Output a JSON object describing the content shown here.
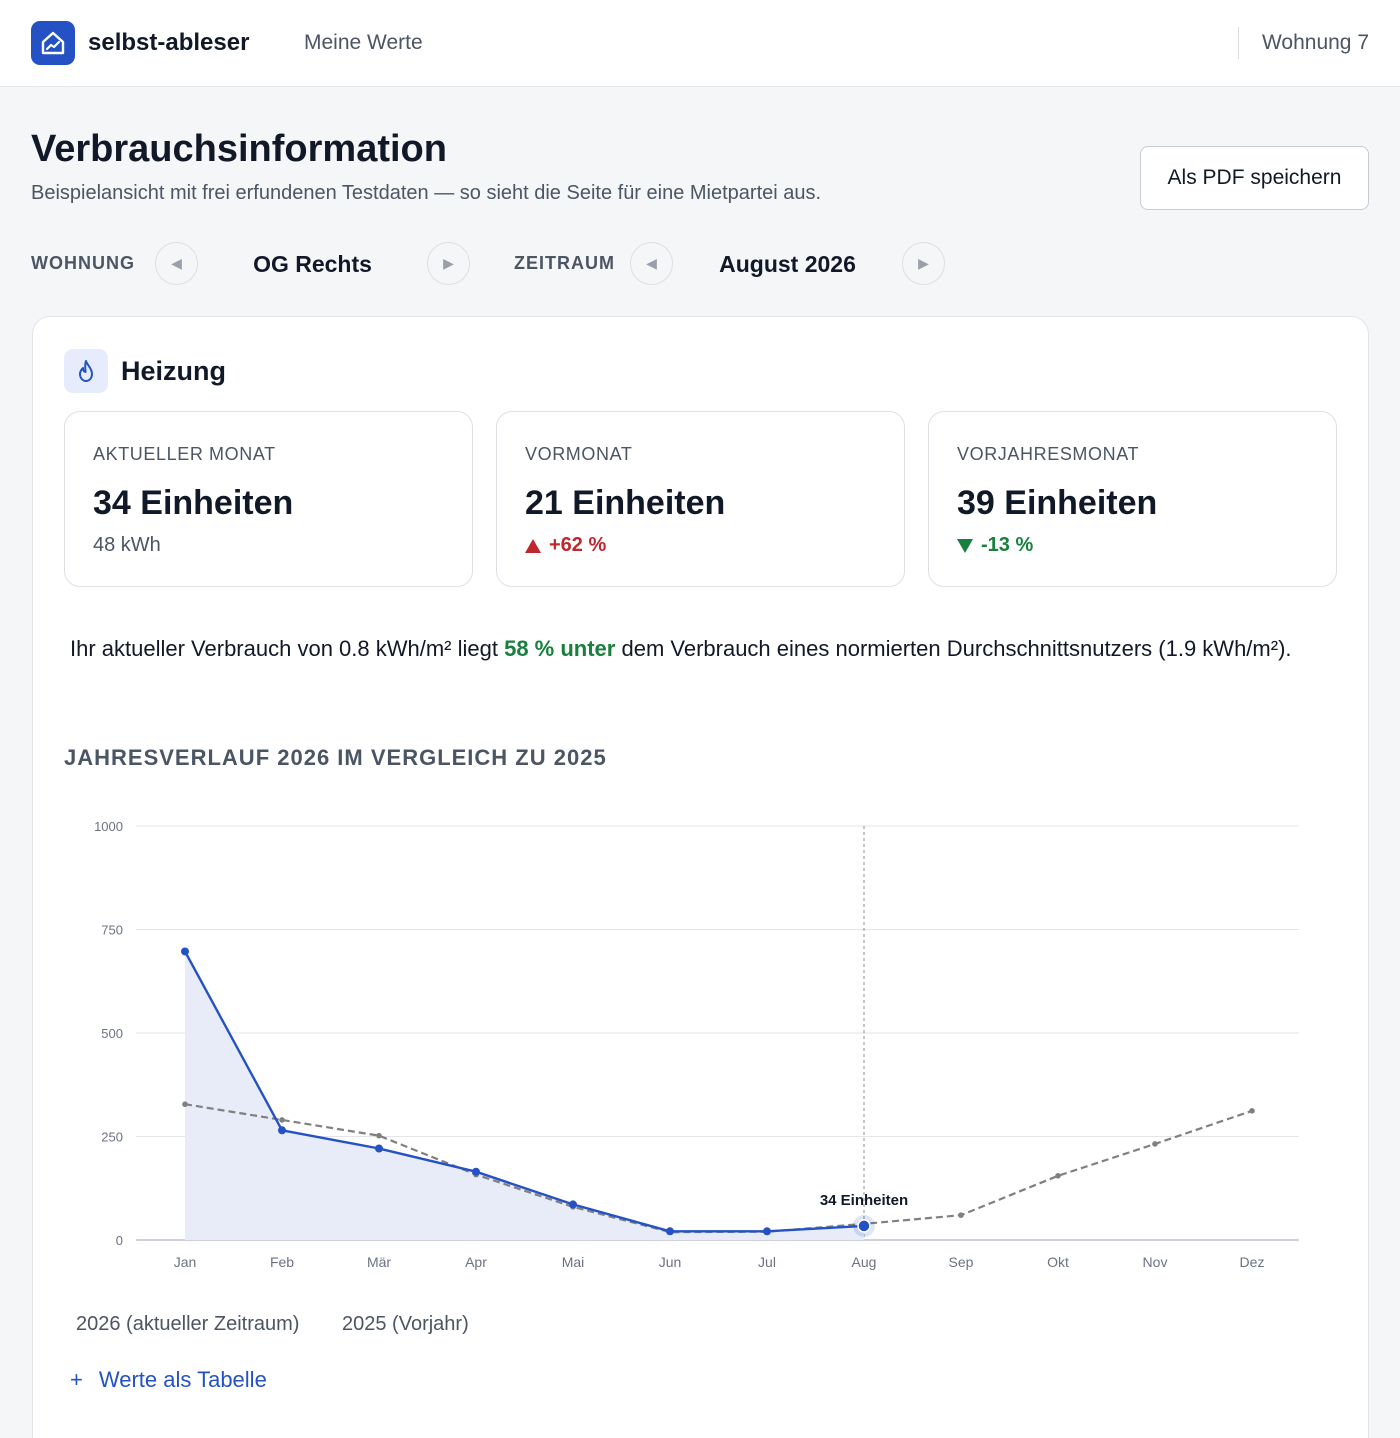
{
  "app": {
    "brand": "selbst-ableser",
    "nav_link": "Meine Werte",
    "unit_label": "Wohnung 7",
    "icon": "house-chart-icon"
  },
  "header": {
    "title": "Verbrauchsinformation",
    "subtitle": "Beispielansicht mit frei erfundenen Testdaten — so sieht die Seite für eine Mietpartei aus.",
    "pdf_button": "Als PDF speichern"
  },
  "selectors": {
    "apartment_label": "WOHNUNG",
    "apartment_value": "OG Rechts",
    "period_label": "ZEITRAUM",
    "period_value": "August 2026",
    "prev_glyph": "◀",
    "next_glyph": "▶"
  },
  "section": {
    "title": "Heizung",
    "icon": "flame-icon"
  },
  "stats": {
    "current": {
      "label": "AKTUELLER MONAT",
      "value": "34 Einheiten",
      "sub": "48 kWh"
    },
    "previous": {
      "label": "VORMONAT",
      "value": "21 Einheiten",
      "delta": "+62 %"
    },
    "last_year": {
      "label": "VORJAHRESMONAT",
      "value": "39 Einheiten",
      "delta": "-13 %"
    }
  },
  "usage": {
    "part1": "Ihr aktueller Verbrauch von 0.8 kWh/m² liegt ",
    "highlight": "58 % unter",
    "part2": " dem Verbrauch eines normierten Durchschnittsnutzers (1.9 kWh/m²)."
  },
  "chart_title": "JAHRESVERLAUF 2026 IM VERGLEICH ZU 2025",
  "chart_data": {
    "type": "line",
    "categories": [
      "Jan",
      "Feb",
      "Mär",
      "Apr",
      "Mai",
      "Jun",
      "Jul",
      "Aug",
      "Sep",
      "Okt",
      "Nov",
      "Dez"
    ],
    "ylim": [
      0,
      1000
    ],
    "yticks": [
      0,
      250,
      500,
      750,
      1000
    ],
    "grid": true,
    "series": [
      {
        "name": "2026 (aktueller Zeitraum)",
        "values": [
          697,
          265,
          221,
          165,
          86,
          21,
          21,
          34,
          null,
          null,
          null,
          null
        ],
        "color": "#2452c4",
        "style": "solid",
        "filled": true
      },
      {
        "name": "2025 (Vorjahr)",
        "values": [
          328,
          290,
          252,
          158,
          80,
          19,
          20,
          39,
          60,
          155,
          232,
          312
        ],
        "color": "#808080",
        "style": "dashed",
        "filled": false
      }
    ],
    "highlight": {
      "index": 7,
      "label": "34 Einheiten"
    },
    "colors": {
      "fill": "#e8ecf8",
      "grid": "#e3e5e8",
      "axis": "#9ca3af",
      "tick": "#6b7280"
    }
  },
  "legend": {
    "current": "2026 (aktueller Zeitraum)",
    "previous": "2025 (Vorjahr)"
  },
  "table_toggle": {
    "glyph": "+",
    "label": "Werte als Tabelle"
  }
}
